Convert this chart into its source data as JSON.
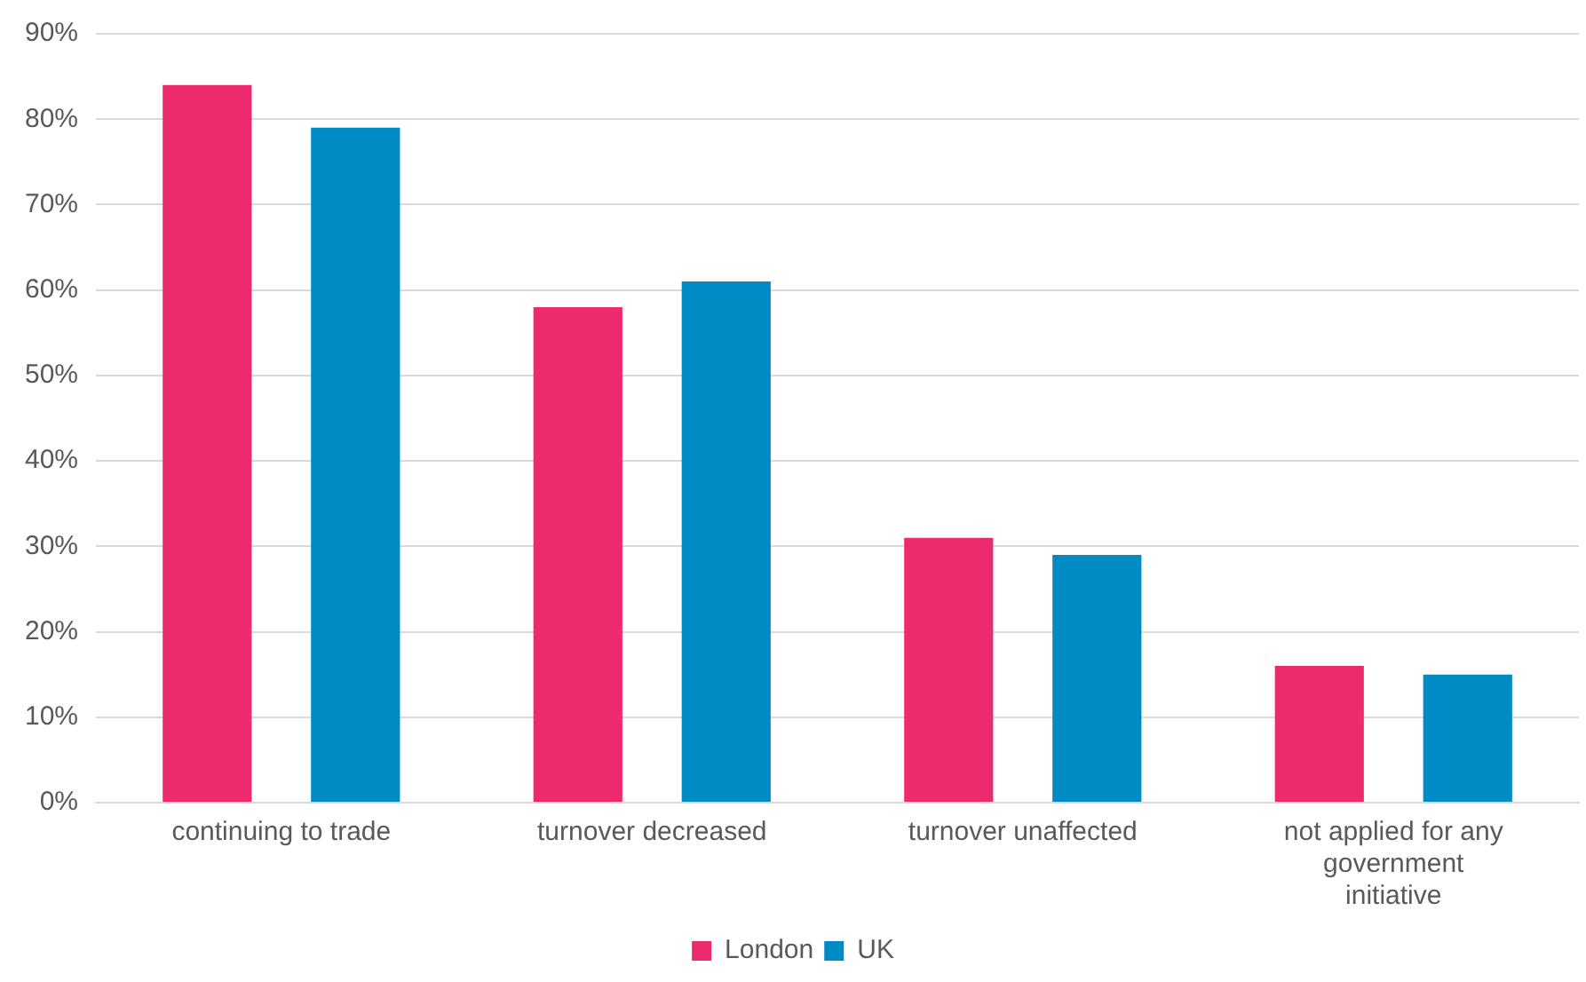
{
  "chart_data": {
    "type": "bar",
    "categories": [
      "continuing to trade",
      "turnover decreased",
      "turnover unaffected",
      "not applied for any government initiative"
    ],
    "series": [
      {
        "name": "London",
        "color": "#ee2a6e",
        "values": [
          84,
          58,
          31,
          16
        ]
      },
      {
        "name": "UK",
        "color": "#008bc4",
        "values": [
          79,
          61,
          29,
          15
        ]
      }
    ],
    "ylim": [
      0,
      90
    ],
    "yticks": [
      {
        "value": 0,
        "label": "0%"
      },
      {
        "value": 10,
        "label": "10%"
      },
      {
        "value": 20,
        "label": "20%"
      },
      {
        "value": 30,
        "label": "30%"
      },
      {
        "value": 40,
        "label": "40%"
      },
      {
        "value": 50,
        "label": "50%"
      },
      {
        "value": 60,
        "label": "60%"
      },
      {
        "value": 70,
        "label": "70%"
      },
      {
        "value": 80,
        "label": "80%"
      },
      {
        "value": 90,
        "label": "90%"
      }
    ],
    "grid": "y",
    "legend": "bottom"
  }
}
